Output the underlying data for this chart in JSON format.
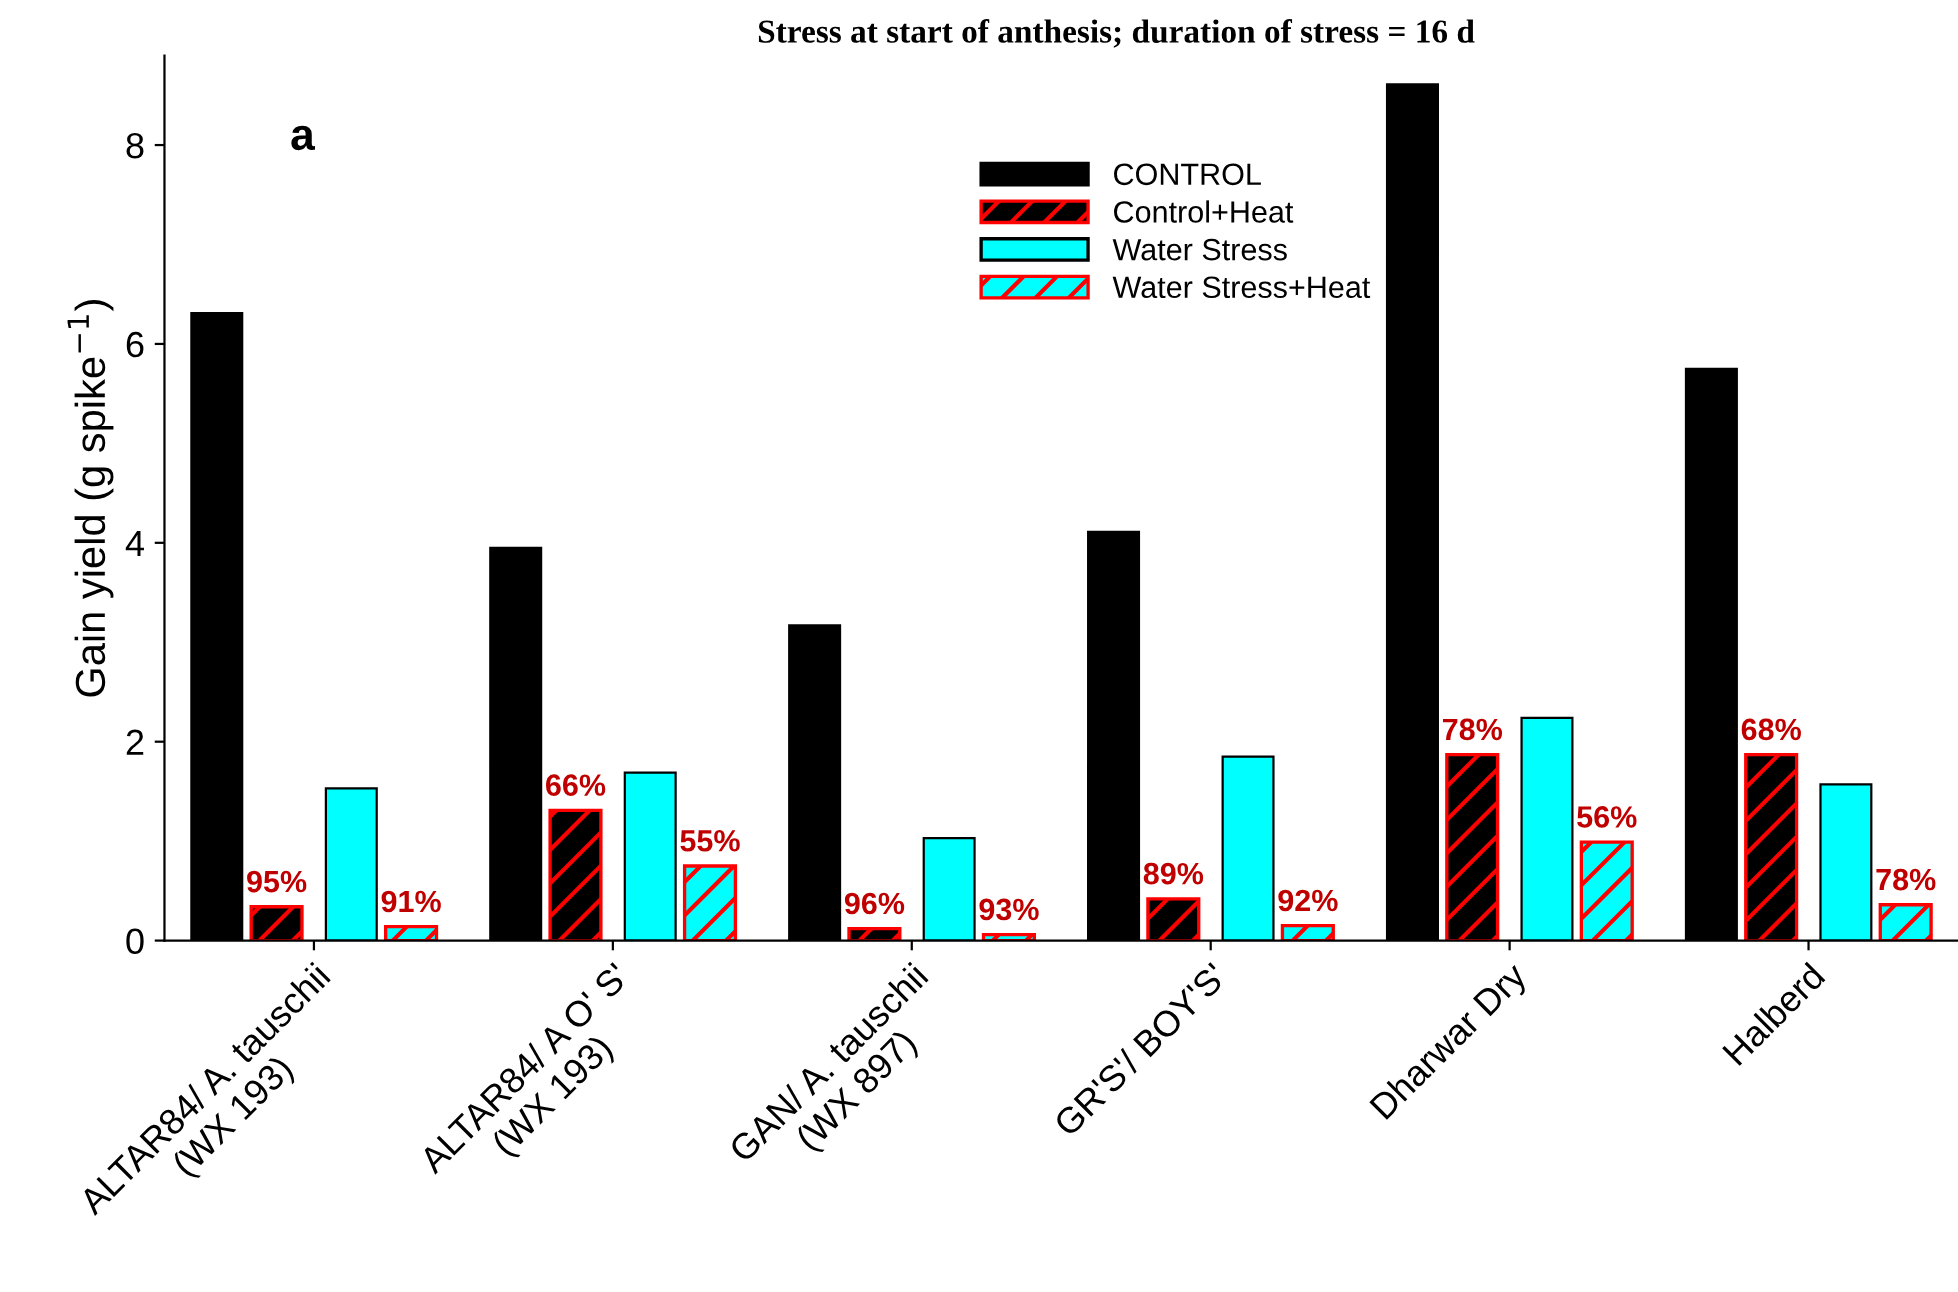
{
  "chart_data": {
    "type": "bar",
    "title": "Stress at start of anthesis; duration of stress = 16 d",
    "ylabel": "Gain yield (g spike$^{−1}$)",
    "annotations": [
      "a",
      "95%",
      "66%",
      "96%",
      "89%",
      "78%",
      "68%",
      "91%",
      "55%",
      "93%",
      "92%",
      "56%",
      "78%"
    ],
    "categories": [
      "ALTAR84/ A. tauschii\n(WX 193)",
      "ALTAR84/ A O' S'\n(WX 193)",
      "GAN/ A. tauschii\n(WX 897)",
      "GR'S'/ BOY'S'",
      "Dharwar Dry",
      "Halberd"
    ],
    "series": [
      {
        "name": "CONTROL",
        "color": "#000000",
        "values": [
          6.31,
          3.95,
          3.17,
          4.11,
          8.61,
          5.75
        ]
      },
      {
        "name": "Control+Heat",
        "color": "#000000",
        "values": [
          0.34,
          1.31,
          0.12,
          0.42,
          1.87,
          1.87
        ]
      },
      {
        "name": "Water Stress",
        "color": "#00ffff",
        "values": [
          1.53,
          1.69,
          1.03,
          1.85,
          2.24,
          1.57
        ]
      },
      {
        "name": "Water Stress+Heat",
        "color": "#00ffff",
        "values": [
          0.14,
          0.75,
          0.06,
          0.15,
          0.99,
          0.36
        ]
      }
    ],
    "ylim": [
      0,
      8.9
    ],
    "yticks": [
      0,
      2,
      4,
      6,
      8
    ],
    "grid": false,
    "legend": "top"
  }
}
